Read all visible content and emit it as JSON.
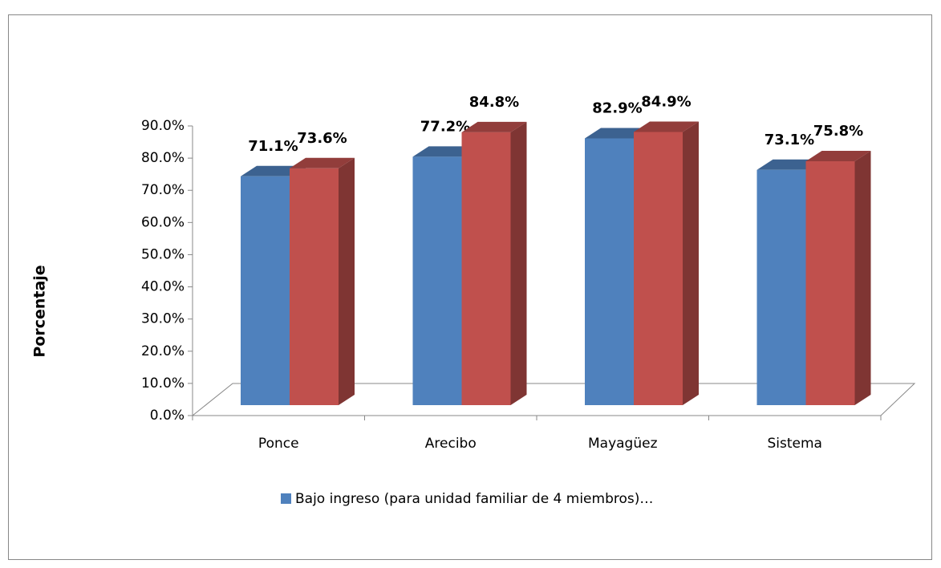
{
  "chart_data": {
    "type": "bar3d",
    "y_label": "Porcentaje",
    "categories": [
      "Ponce",
      "Arecibo",
      "Mayagüez",
      "Sistema"
    ],
    "series": [
      {
        "name": "Bajo ingreso (para unidad familiar de 4 miembros)…",
        "color": "#4f81bd",
        "values": [
          71.1,
          77.2,
          82.9,
          73.1
        ],
        "value_labels": [
          "71.1%",
          "77.2%",
          "82.9%",
          "73.1%"
        ]
      },
      {
        "color": "#c0504d",
        "values": [
          73.6,
          84.8,
          84.9,
          75.8
        ],
        "value_labels": [
          "73.6%",
          "84.8%",
          "84.9%",
          "75.8%"
        ]
      }
    ],
    "ylim": [
      0,
      90
    ],
    "yticks": [
      {
        "value": 0,
        "label": "0.0%"
      },
      {
        "value": 10,
        "label": "10.0%"
      },
      {
        "value": 20,
        "label": "20.0%"
      },
      {
        "value": 30,
        "label": "30.0%"
      },
      {
        "value": 40,
        "label": "40.0%"
      },
      {
        "value": 50,
        "label": "50.0%"
      },
      {
        "value": 60,
        "label": "60.0%"
      },
      {
        "value": 70,
        "label": "70.0%"
      },
      {
        "value": 80,
        "label": "80.0%"
      },
      {
        "value": 90,
        "label": "90.0%"
      }
    ],
    "legend": "bottom"
  }
}
